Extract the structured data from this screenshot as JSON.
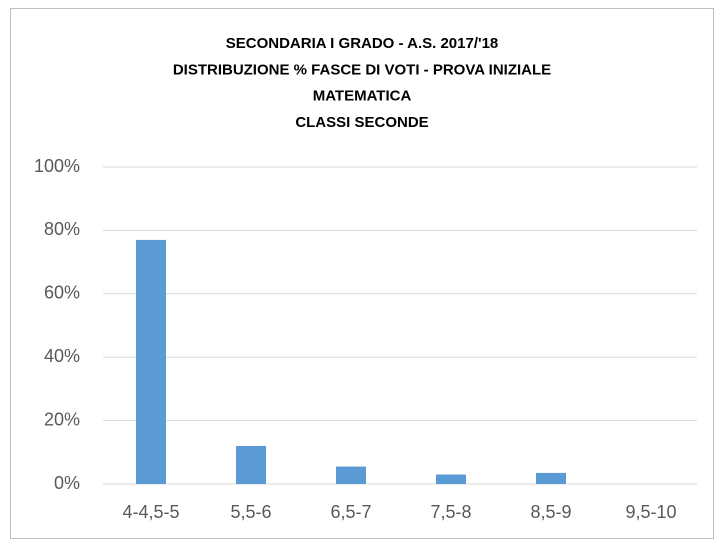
{
  "chart_data": {
    "type": "bar",
    "title": [
      "SECONDARIA I GRADO - A.S. 2017/'18",
      "DISTRIBUZIONE % FASCE DI VOTI - PROVA INIZIALE",
      "MATEMATICA",
      "CLASSI SECONDE"
    ],
    "categories": [
      "4-4,5-5",
      "5,5-6",
      "6,5-7",
      "7,5-8",
      "8,5-9",
      "9,5-10"
    ],
    "values": [
      77,
      12,
      5.5,
      3,
      3.5,
      0
    ],
    "color": "#5b9bd5",
    "ylim": [
      0,
      100
    ],
    "yticks": [
      {
        "value": 0,
        "label": "0%"
      },
      {
        "value": 20,
        "label": "20%"
      },
      {
        "value": 40,
        "label": "40%"
      },
      {
        "value": 60,
        "label": "60%"
      },
      {
        "value": 80,
        "label": "80%"
      },
      {
        "value": 100,
        "label": "100%"
      }
    ],
    "grid": true
  }
}
